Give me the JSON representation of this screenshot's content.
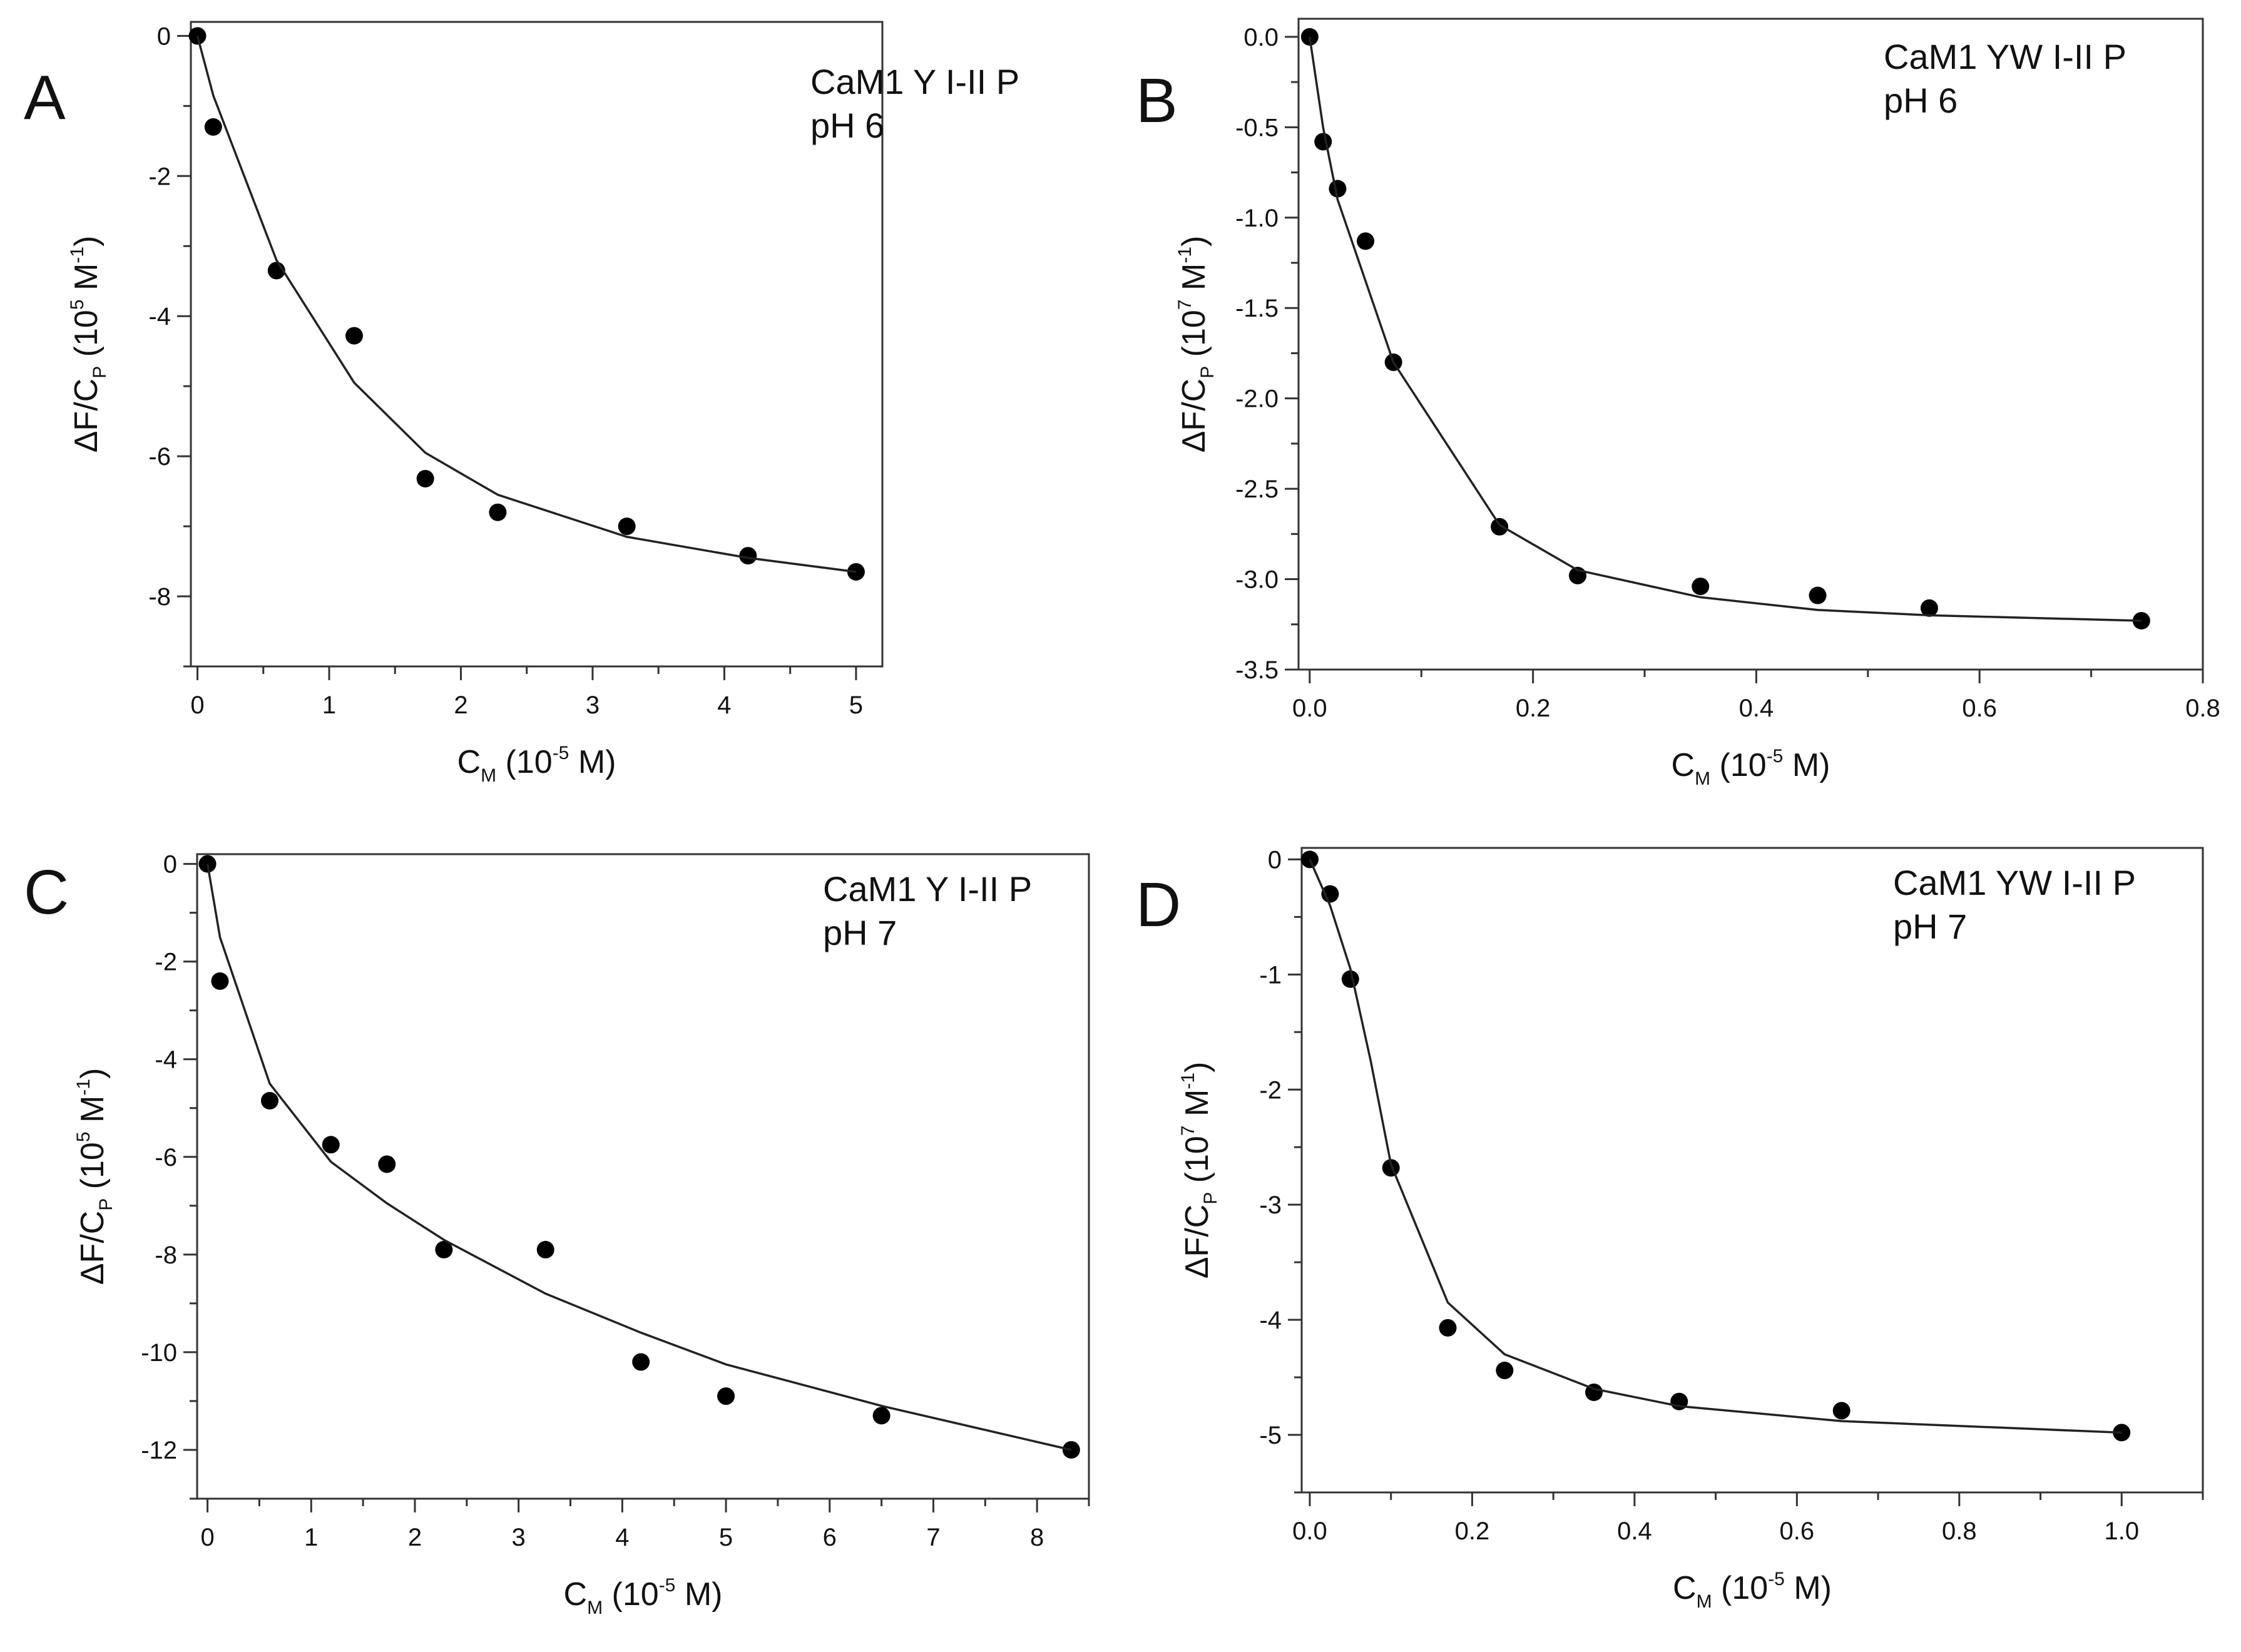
{
  "chart_data": [
    {
      "type": "scatter",
      "panel": "A",
      "annotation": [
        "CaM1 Y I-II P",
        "pH 6"
      ],
      "xlabel": {
        "main": "C",
        "sub": "M",
        "pre": " (10",
        "sup": "-5",
        "post": " M)"
      },
      "ylabel": {
        "pre": "ΔF/C",
        "sub": "P",
        "mid": " (10",
        "sup": "5",
        "mid2": " M",
        "sup2": "-1",
        "post": ")"
      },
      "xlim": [
        -0.05,
        5.2
      ],
      "ylim": [
        -9,
        0.2
      ],
      "xticks": [
        "0",
        "1",
        "2",
        "3",
        "4",
        "5"
      ],
      "yticks": [
        "0",
        "-2",
        "-4",
        "-6",
        "-8"
      ],
      "series": [
        {
          "name": "data",
          "style": "points",
          "x": [
            0,
            0.12,
            0.6,
            1.19,
            1.73,
            2.28,
            3.26,
            4.18,
            5.0
          ],
          "y": [
            0,
            -1.3,
            -3.35,
            -4.28,
            -6.32,
            -6.8,
            -7.0,
            -7.42,
            -7.65
          ]
        },
        {
          "name": "fit",
          "style": "line",
          "x": [
            0,
            0.12,
            0.6,
            1.19,
            1.73,
            2.28,
            3.26,
            4.18,
            5.0
          ],
          "y": [
            0,
            -0.85,
            -3.2,
            -4.95,
            -5.95,
            -6.55,
            -7.15,
            -7.45,
            -7.65
          ]
        }
      ]
    },
    {
      "type": "scatter",
      "panel": "B",
      "annotation": [
        "CaM1 YW I-II P",
        "pH 6"
      ],
      "xlabel": {
        "main": "C",
        "sub": "M",
        "pre": " (10",
        "sup": "-5",
        "post": " M)"
      },
      "ylabel": {
        "pre": "ΔF/C",
        "sub": "P",
        "mid": " (10",
        "sup": "7",
        "mid2": " M",
        "sup2": "-1",
        "post": ")"
      },
      "xlim": [
        -0.01,
        0.8
      ],
      "ylim": [
        -3.5,
        0.1
      ],
      "xticks": [
        "0.0",
        "0.2",
        "0.4",
        "0.6",
        "0.8"
      ],
      "yticks": [
        "0.0",
        "-0.5",
        "-1.0",
        "-1.5",
        "-2.0",
        "-2.5",
        "-3.0",
        "-3.5"
      ],
      "series": [
        {
          "name": "data",
          "style": "points",
          "x": [
            0,
            0.012,
            0.025,
            0.05,
            0.075,
            0.17,
            0.24,
            0.35,
            0.455,
            0.555,
            0.745
          ],
          "y": [
            0,
            -0.58,
            -0.84,
            -1.13,
            -1.8,
            -2.71,
            -2.98,
            -3.04,
            -3.09,
            -3.16,
            -3.23
          ]
        },
        {
          "name": "fit",
          "style": "line",
          "x": [
            0,
            0.012,
            0.025,
            0.05,
            0.075,
            0.17,
            0.24,
            0.35,
            0.455,
            0.555,
            0.745
          ],
          "y": [
            0,
            -0.5,
            -0.9,
            -1.35,
            -1.8,
            -2.7,
            -2.95,
            -3.1,
            -3.17,
            -3.2,
            -3.23
          ]
        }
      ]
    },
    {
      "type": "scatter",
      "panel": "C",
      "annotation": [
        "CaM1 Y I-II P",
        "pH 7"
      ],
      "xlabel": {
        "main": "C",
        "sub": "M",
        "pre": " (10",
        "sup": "-5",
        "post": " M)"
      },
      "ylabel": {
        "pre": "ΔF/C",
        "sub": "P",
        "mid": " (10",
        "sup": "5",
        "mid2": " M",
        "sup2": "-1",
        "post": ")"
      },
      "xlim": [
        -0.1,
        8.5
      ],
      "ylim": [
        -13,
        0.2
      ],
      "xticks": [
        "0",
        "1",
        "2",
        "3",
        "4",
        "5",
        "6",
        "7",
        "8"
      ],
      "yticks": [
        "0",
        "-2",
        "-4",
        "-6",
        "-8",
        "-10",
        "-12"
      ],
      "series": [
        {
          "name": "data",
          "style": "points",
          "x": [
            0,
            0.12,
            0.6,
            1.19,
            1.73,
            2.28,
            3.26,
            4.18,
            5.0,
            6.5,
            8.33
          ],
          "y": [
            0,
            -2.4,
            -4.85,
            -5.75,
            -6.15,
            -7.9,
            -7.9,
            -10.2,
            -10.9,
            -11.3,
            -12.0
          ]
        },
        {
          "name": "fit",
          "style": "line",
          "x": [
            0,
            0.12,
            0.6,
            1.19,
            1.73,
            2.28,
            3.26,
            4.18,
            5.0,
            6.5,
            8.33
          ],
          "y": [
            0,
            -1.5,
            -4.5,
            -6.1,
            -6.95,
            -7.7,
            -8.8,
            -9.6,
            -10.25,
            -11.1,
            -12.0
          ]
        }
      ]
    },
    {
      "type": "scatter",
      "panel": "D",
      "annotation": [
        "CaM1 YW I-II P",
        "pH 7"
      ],
      "xlabel": {
        "main": "C",
        "sub": "M",
        "pre": " (10",
        "sup": "-5",
        "post": " M)"
      },
      "ylabel": {
        "pre": "ΔF/C",
        "sub": "P",
        "mid": " (10",
        "sup": "7",
        "mid2": " M",
        "sup2": "-1",
        "post": ")"
      },
      "xlim": [
        -0.01,
        1.1
      ],
      "ylim": [
        -5.5,
        0.1
      ],
      "xticks": [
        "0.0",
        "0.2",
        "0.4",
        "0.6",
        "0.8",
        "1.0"
      ],
      "yticks": [
        "0",
        "-1",
        "-2",
        "-3",
        "-4",
        "-5"
      ],
      "series": [
        {
          "name": "data",
          "style": "points",
          "x": [
            0,
            0.025,
            0.05,
            0.1,
            0.17,
            0.24,
            0.35,
            0.455,
            0.655,
            1.0
          ],
          "y": [
            0,
            -0.3,
            -1.04,
            -2.68,
            -4.07,
            -4.44,
            -4.63,
            -4.71,
            -4.79,
            -4.98
          ]
        },
        {
          "name": "fit",
          "style": "line",
          "x": [
            0,
            0.025,
            0.05,
            0.075,
            0.1,
            0.17,
            0.24,
            0.35,
            0.455,
            0.655,
            1.0
          ],
          "y": [
            0,
            -0.4,
            -0.95,
            -1.75,
            -2.65,
            -3.85,
            -4.3,
            -4.6,
            -4.75,
            -4.88,
            -4.98
          ]
        }
      ]
    }
  ]
}
